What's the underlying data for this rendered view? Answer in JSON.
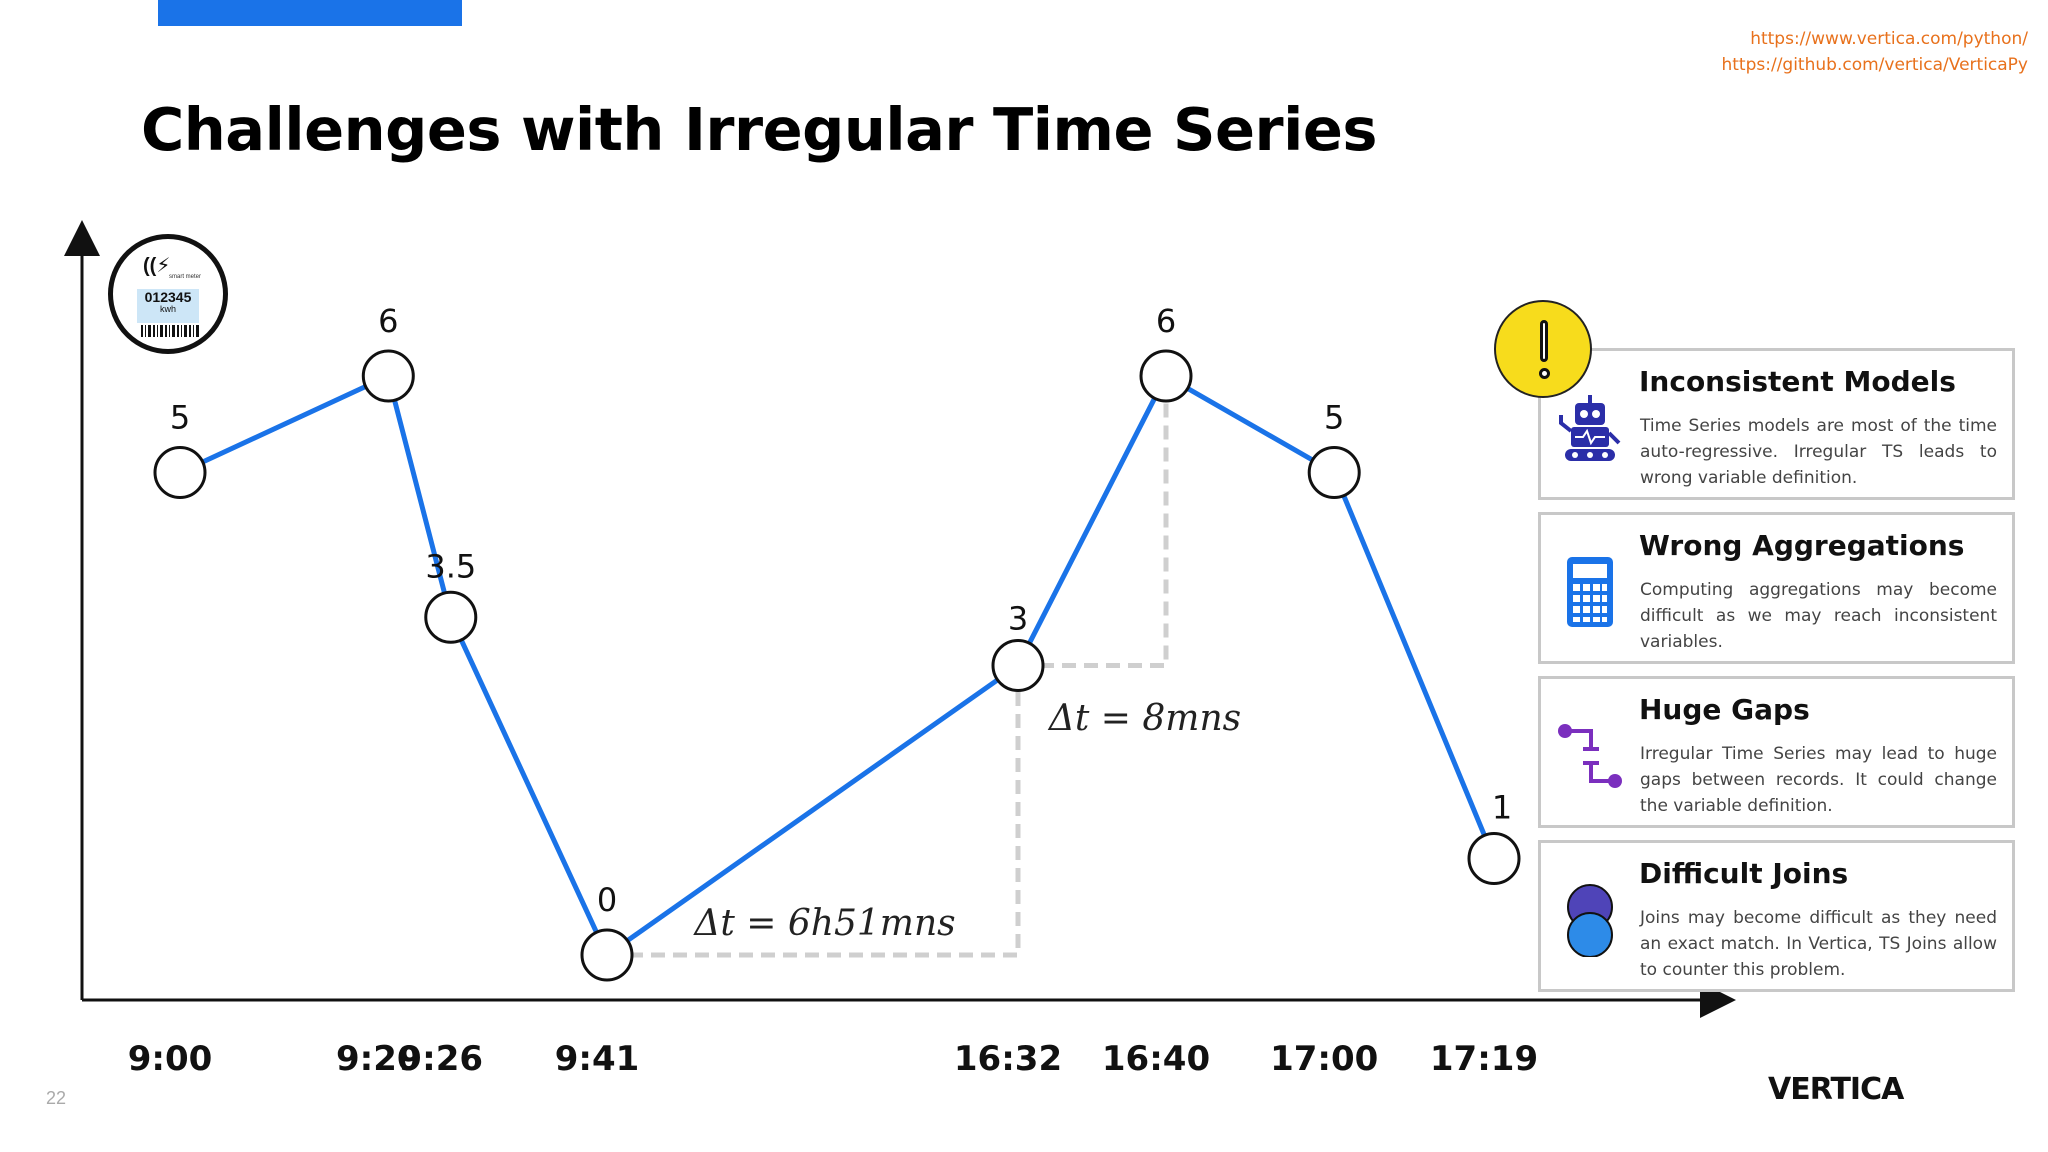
{
  "header": {
    "title": "Challenges with Irregular Time Series",
    "links": [
      "https://www.vertica.com/python/",
      "https://github.com/vertica/VerticaPy"
    ]
  },
  "meter": {
    "reading": "012345",
    "unit": "kwh",
    "caption": "smart meter"
  },
  "chart_data": {
    "type": "line",
    "x": [
      "9:00",
      "9:20",
      "9:26",
      "9:41",
      "16:32",
      "16:40",
      "17:00",
      "17:19"
    ],
    "values": [
      5,
      6,
      3.5,
      0,
      3,
      6,
      5,
      1
    ],
    "value_labels": [
      "5",
      "6",
      "3.5",
      "0",
      "3",
      "6",
      "5",
      "1"
    ],
    "annotations": [
      {
        "text": "Δt = 6h51mns",
        "from": "9:41",
        "to": "16:32"
      },
      {
        "text": "Δt = 8mns",
        "from": "16:32",
        "to": "16:40"
      }
    ],
    "line_color": "#1a73e8"
  },
  "cards": [
    {
      "title": "Inconsistent Models",
      "icon": "robot-icon",
      "desc": "Time Series models are most of the time auto-regressive. Irregular TS leads to wrong variable definition."
    },
    {
      "title": "Wrong Aggregations",
      "icon": "calculator-icon",
      "desc": "Computing aggregations may become difficult as we may reach inconsistent variables."
    },
    {
      "title": "Huge Gaps",
      "icon": "gap-path-icon",
      "desc": "Irregular Time Series may lead to huge gaps between records. It could change the variable definition."
    },
    {
      "title": "Difficult Joins",
      "icon": "join-circles-icon",
      "desc": "Joins may become difficult as they need an exact match. In Vertica, TS Joins allow to counter this problem."
    }
  ],
  "footer": {
    "page_number": "22",
    "logo": "VERTICA"
  },
  "colors": {
    "accent": "#1a73e8",
    "link": "#e8711c",
    "alert": "#f7dc1c"
  }
}
